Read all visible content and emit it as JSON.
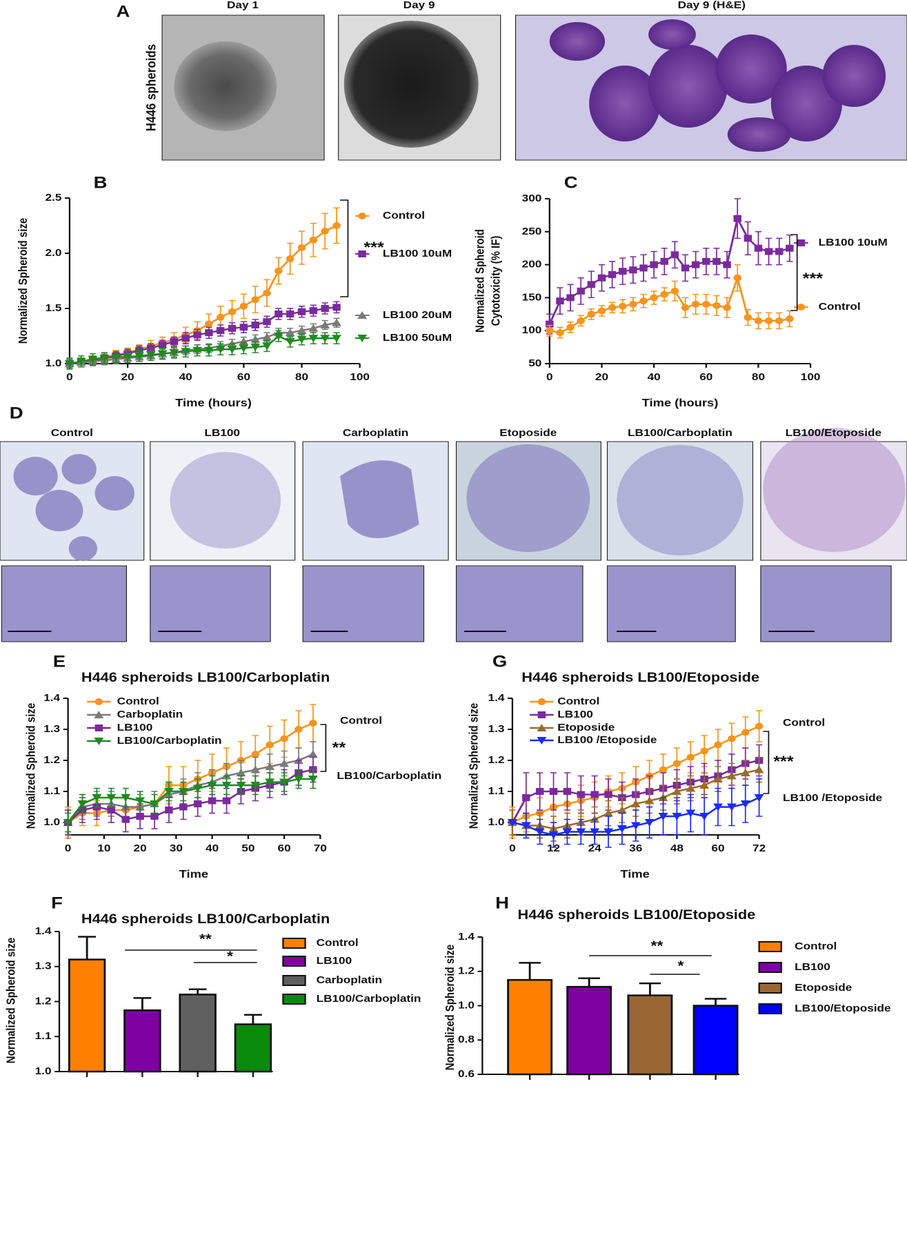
{
  "panel_a": {
    "label": "A",
    "row_label": "H446 spheroids",
    "captions": [
      "Day 1",
      "Day 9",
      "Day 9 (H&E)"
    ]
  },
  "panel_d": {
    "label": "D",
    "captions": [
      "Control",
      "LB100",
      "Carboplatin",
      "Etoposide",
      "LB100/Carboplatin",
      "LB100/Etoposide"
    ]
  },
  "chart_data": [
    {
      "type": "line",
      "panel_label": "B",
      "x_label": "Time (hours)",
      "y_label": [
        "Normalized Spheroid size"
      ],
      "x": [
        0,
        4,
        8,
        12,
        16,
        20,
        24,
        28,
        32,
        36,
        40,
        44,
        48,
        52,
        56,
        60,
        64,
        68,
        72,
        76,
        80,
        84,
        88,
        92
      ],
      "xlim": [
        0,
        100
      ],
      "xticks": [
        0,
        20,
        40,
        60,
        80,
        100
      ],
      "ylim": [
        1.0,
        2.5
      ],
      "yticks": [
        {
          "value": 1,
          "label": "1.0"
        },
        1.5,
        {
          "value": 2,
          "label": "2.0"
        },
        2.5
      ],
      "annotations": [
        "***"
      ],
      "series": [
        {
          "name": "Control",
          "color": "#f7941d",
          "marker": "circle",
          "values": [
            1.0,
            1.02,
            1.04,
            1.06,
            1.08,
            1.1,
            1.13,
            1.16,
            1.19,
            1.22,
            1.26,
            1.3,
            1.36,
            1.42,
            1.47,
            1.52,
            1.58,
            1.64,
            1.84,
            1.95,
            2.05,
            2.12,
            2.2,
            2.25
          ],
          "errors": [
            0.03,
            0.03,
            0.03,
            0.03,
            0.04,
            0.04,
            0.04,
            0.05,
            0.05,
            0.06,
            0.07,
            0.08,
            0.09,
            0.1,
            0.1,
            0.11,
            0.12,
            0.12,
            0.12,
            0.14,
            0.15,
            0.15,
            0.16,
            0.16
          ]
        },
        {
          "name": "LB100 10uM",
          "color": "#7b2a9e",
          "marker": "square",
          "values": [
            1.0,
            1.02,
            1.03,
            1.05,
            1.07,
            1.09,
            1.12,
            1.14,
            1.17,
            1.2,
            1.23,
            1.26,
            1.28,
            1.3,
            1.32,
            1.33,
            1.35,
            1.38,
            1.45,
            1.45,
            1.47,
            1.48,
            1.5,
            1.51
          ],
          "errors": [
            0.03,
            0.03,
            0.03,
            0.03,
            0.03,
            0.04,
            0.04,
            0.04,
            0.04,
            0.04,
            0.05,
            0.05,
            0.05,
            0.05,
            0.05,
            0.05,
            0.05,
            0.05,
            0.05,
            0.05,
            0.05,
            0.05,
            0.05,
            0.05
          ]
        },
        {
          "name": "LB100 20uM",
          "color": "#7a7a7a",
          "marker": "triangle",
          "values": [
            1.0,
            1.01,
            1.02,
            1.03,
            1.04,
            1.05,
            1.06,
            1.07,
            1.09,
            1.1,
            1.12,
            1.13,
            1.14,
            1.16,
            1.18,
            1.2,
            1.22,
            1.24,
            1.28,
            1.28,
            1.3,
            1.32,
            1.35,
            1.37
          ],
          "errors": [
            0.04,
            0.04,
            0.04,
            0.04,
            0.04,
            0.04,
            0.04,
            0.04,
            0.04,
            0.04,
            0.04,
            0.04,
            0.04,
            0.04,
            0.04,
            0.04,
            0.04,
            0.04,
            0.04,
            0.04,
            0.04,
            0.04,
            0.04,
            0.04
          ]
        },
        {
          "name": "LB100 50uM",
          "color": "#1f8a1f",
          "marker": "down",
          "values": [
            1.0,
            1.02,
            1.04,
            1.05,
            1.06,
            1.06,
            1.07,
            1.08,
            1.09,
            1.1,
            1.11,
            1.12,
            1.12,
            1.13,
            1.13,
            1.14,
            1.15,
            1.16,
            1.25,
            1.2,
            1.22,
            1.23,
            1.23,
            1.23
          ],
          "errors": [
            0.05,
            0.05,
            0.05,
            0.05,
            0.05,
            0.05,
            0.05,
            0.05,
            0.05,
            0.05,
            0.05,
            0.05,
            0.05,
            0.05,
            0.05,
            0.05,
            0.05,
            0.05,
            0.05,
            0.05,
            0.05,
            0.05,
            0.05,
            0.05
          ]
        }
      ]
    },
    {
      "type": "line",
      "panel_label": "C",
      "x_label": "Time (hours)",
      "y_label": [
        "Normalized Spheroid",
        "Cytotoxicity (% IF)"
      ],
      "x": [
        0,
        4,
        8,
        12,
        16,
        20,
        24,
        28,
        32,
        36,
        40,
        44,
        48,
        52,
        56,
        60,
        64,
        68,
        72,
        76,
        80,
        84,
        88,
        92
      ],
      "xlim": [
        0,
        100
      ],
      "xticks": [
        0,
        20,
        40,
        60,
        80,
        100
      ],
      "ylim": [
        50,
        300
      ],
      "yticks": [
        50,
        100,
        150,
        200,
        250,
        300
      ],
      "annotations": [
        "***"
      ],
      "series": [
        {
          "name": "LB100 10uM",
          "color": "#7b2a9e",
          "marker": "square",
          "values": [
            110,
            145,
            150,
            160,
            170,
            180,
            185,
            190,
            192,
            195,
            200,
            205,
            215,
            195,
            200,
            205,
            205,
            200,
            270,
            240,
            225,
            220,
            220,
            225
          ],
          "errors": [
            15,
            20,
            20,
            20,
            20,
            20,
            20,
            20,
            20,
            20,
            20,
            20,
            20,
            20,
            20,
            20,
            20,
            20,
            30,
            25,
            25,
            20,
            20,
            20
          ]
        },
        {
          "name": "Control",
          "color": "#f7941d",
          "marker": "circle",
          "values": [
            100,
            97,
            105,
            115,
            125,
            130,
            135,
            137,
            140,
            145,
            150,
            155,
            160,
            135,
            140,
            140,
            138,
            135,
            180,
            120,
            115,
            115,
            115,
            118
          ],
          "errors": [
            8,
            8,
            8,
            8,
            8,
            8,
            8,
            10,
            10,
            10,
            10,
            10,
            15,
            15,
            15,
            15,
            15,
            15,
            20,
            12,
            12,
            12,
            12,
            12
          ]
        }
      ]
    },
    {
      "type": "line",
      "panel_label": "E",
      "title": "H446 spheroids LB100/Carboplatin",
      "x_label": "Time",
      "y_label": [
        "Normalized Spheroid size"
      ],
      "x": [
        0,
        4,
        8,
        12,
        16,
        20,
        24,
        28,
        32,
        36,
        40,
        44,
        48,
        52,
        56,
        60,
        64,
        68
      ],
      "xlim": [
        0,
        70
      ],
      "xticks": [
        0,
        10,
        20,
        30,
        40,
        50,
        60,
        70
      ],
      "ylim": [
        0.96,
        1.4
      ],
      "yticks": [
        {
          "value": 1,
          "label": "1.0"
        },
        1.1,
        1.2,
        1.3,
        1.4
      ],
      "annotations": [
        "Control",
        "**",
        "LB100/Carboplatin"
      ],
      "series": [
        {
          "name": "Control",
          "color": "#f7941d",
          "marker": "circle",
          "values": [
            1.0,
            1.03,
            1.03,
            1.04,
            1.04,
            1.05,
            1.06,
            1.12,
            1.12,
            1.14,
            1.16,
            1.18,
            1.2,
            1.22,
            1.25,
            1.27,
            1.3,
            1.32
          ],
          "errors": [
            0.05,
            0.04,
            0.04,
            0.04,
            0.04,
            0.04,
            0.04,
            0.06,
            0.06,
            0.06,
            0.06,
            0.06,
            0.06,
            0.06,
            0.06,
            0.06,
            0.06,
            0.06
          ]
        },
        {
          "name": "Carboplatin",
          "color": "#7a7a7a",
          "marker": "triangle",
          "values": [
            1.0,
            1.05,
            1.06,
            1.06,
            1.05,
            1.05,
            1.06,
            1.09,
            1.1,
            1.12,
            1.13,
            1.15,
            1.16,
            1.17,
            1.18,
            1.19,
            1.2,
            1.22
          ],
          "errors": [
            0.04,
            0.04,
            0.04,
            0.04,
            0.04,
            0.04,
            0.04,
            0.04,
            0.04,
            0.04,
            0.04,
            0.04,
            0.04,
            0.04,
            0.04,
            0.04,
            0.04,
            0.04
          ]
        },
        {
          "name": "LB100",
          "color": "#7b2a9e",
          "marker": "square",
          "values": [
            1.0,
            1.04,
            1.05,
            1.04,
            1.01,
            1.02,
            1.02,
            1.04,
            1.05,
            1.06,
            1.07,
            1.07,
            1.1,
            1.11,
            1.12,
            1.13,
            1.16,
            1.17
          ],
          "errors": [
            0.04,
            0.04,
            0.04,
            0.04,
            0.04,
            0.04,
            0.04,
            0.04,
            0.04,
            0.04,
            0.04,
            0.04,
            0.04,
            0.04,
            0.04,
            0.04,
            0.04,
            0.04
          ]
        },
        {
          "name": "LB100/Carboplatin",
          "color": "#1f8a1f",
          "marker": "down",
          "values": [
            1.0,
            1.06,
            1.08,
            1.08,
            1.08,
            1.07,
            1.06,
            1.1,
            1.1,
            1.11,
            1.12,
            1.12,
            1.12,
            1.12,
            1.13,
            1.13,
            1.14,
            1.14
          ],
          "errors": [
            0.03,
            0.03,
            0.03,
            0.03,
            0.03,
            0.03,
            0.03,
            0.03,
            0.03,
            0.03,
            0.03,
            0.03,
            0.03,
            0.03,
            0.03,
            0.03,
            0.03,
            0.03
          ]
        }
      ]
    },
    {
      "type": "line",
      "panel_label": "G",
      "title": "H446 spheroids LB100/Etoposide",
      "x_label": "Time",
      "y_label": [
        "Normalized Spheroid size"
      ],
      "x": [
        0,
        4,
        8,
        12,
        16,
        20,
        24,
        28,
        32,
        36,
        40,
        44,
        48,
        52,
        56,
        60,
        64,
        68,
        72
      ],
      "xlim": [
        0,
        72
      ],
      "xticks": [
        0,
        12,
        24,
        36,
        48,
        60,
        72
      ],
      "ylim": [
        0.96,
        1.4
      ],
      "yticks": [
        {
          "value": 1,
          "label": "1.0"
        },
        1.1,
        1.2,
        1.3,
        1.4
      ],
      "annotations": [
        "Control",
        "***",
        "LB100 /Etoposide"
      ],
      "series": [
        {
          "name": "Control",
          "color": "#f7941d",
          "marker": "circle",
          "values": [
            1.0,
            1.02,
            1.03,
            1.05,
            1.06,
            1.07,
            1.08,
            1.1,
            1.11,
            1.13,
            1.15,
            1.17,
            1.19,
            1.21,
            1.23,
            1.25,
            1.27,
            1.29,
            1.31
          ],
          "errors": [
            0.05,
            0.05,
            0.05,
            0.05,
            0.05,
            0.05,
            0.05,
            0.05,
            0.05,
            0.05,
            0.05,
            0.05,
            0.05,
            0.05,
            0.05,
            0.05,
            0.05,
            0.05,
            0.05
          ]
        },
        {
          "name": "LB100",
          "color": "#7b2a9e",
          "marker": "square",
          "values": [
            1.0,
            1.08,
            1.1,
            1.1,
            1.1,
            1.09,
            1.09,
            1.09,
            1.08,
            1.09,
            1.1,
            1.11,
            1.12,
            1.13,
            1.14,
            1.15,
            1.17,
            1.19,
            1.2
          ],
          "errors": [
            0,
            0.08,
            0.06,
            0.06,
            0.06,
            0.06,
            0.06,
            0.05,
            0.05,
            0.05,
            0.05,
            0.05,
            0.05,
            0.05,
            0.05,
            0.05,
            0.05,
            0.05,
            0.05
          ]
        },
        {
          "name": "Etoposide",
          "color": "#9c6a2a",
          "marker": "triangle",
          "values": [
            1.0,
            0.99,
            0.99,
            0.98,
            0.99,
            1.0,
            1.01,
            1.03,
            1.04,
            1.06,
            1.07,
            1.08,
            1.1,
            1.11,
            1.12,
            1.14,
            1.15,
            1.16,
            1.17
          ],
          "errors": [
            0.04,
            0.04,
            0.04,
            0.04,
            0.04,
            0.04,
            0.04,
            0.04,
            0.04,
            0.04,
            0.04,
            0.04,
            0.04,
            0.04,
            0.04,
            0.04,
            0.04,
            0.04,
            0.04
          ]
        },
        {
          "name": "LB100 /Etoposide",
          "color": "#1a2cff",
          "marker": "down",
          "values": [
            1.0,
            0.99,
            0.97,
            0.96,
            0.97,
            0.97,
            0.97,
            0.97,
            0.98,
            0.99,
            1.0,
            1.02,
            1.02,
            1.03,
            1.02,
            1.05,
            1.05,
            1.06,
            1.08
          ],
          "errors": [
            0,
            0.04,
            0.04,
            0.04,
            0.04,
            0.04,
            0.04,
            0.05,
            0.05,
            0.05,
            0.05,
            0.06,
            0.06,
            0.06,
            0.06,
            0.06,
            0.06,
            0.06,
            0.06
          ]
        }
      ]
    },
    {
      "type": "bar",
      "panel_label": "F",
      "title": "H446 spheroids LB100/Carboplatin",
      "y_label": [
        "Normalized Spheroid size"
      ],
      "categories": [
        "Control",
        "LB100",
        "Carboplatin",
        "LB100/Carboplatin"
      ],
      "values": [
        1.32,
        1.175,
        1.22,
        1.135
      ],
      "errors": [
        0.065,
        0.035,
        0.015,
        0.027
      ],
      "colors": [
        "#ff8000",
        "#7f00a0",
        "#606060",
        "#0a8a0a"
      ],
      "ylim": [
        1.0,
        1.4
      ],
      "yticks": [
        {
          "value": 1,
          "label": "1.0"
        },
        1.1,
        1.2,
        1.3,
        1.4
      ],
      "annotations": [
        "**",
        "*"
      ]
    },
    {
      "type": "bar",
      "panel_label": "H",
      "title": "H446 spheroids LB100/Etoposide",
      "y_label": [
        "Normalized Spheroid size"
      ],
      "categories": [
        "Control",
        "LB100",
        "Etoposide",
        "LB100/Etoposide"
      ],
      "values": [
        1.15,
        1.11,
        1.06,
        1.0
      ],
      "errors": [
        0.1,
        0.05,
        0.07,
        0.04
      ],
      "colors": [
        "#ff8000",
        "#7f00a0",
        "#996633",
        "#0000ff"
      ],
      "ylim": [
        0.6,
        1.4
      ],
      "yticks": [
        0.6,
        0.8,
        {
          "value": 1,
          "label": "1.0"
        },
        1.2,
        1.4
      ],
      "annotations": [
        "**",
        "*"
      ]
    }
  ]
}
